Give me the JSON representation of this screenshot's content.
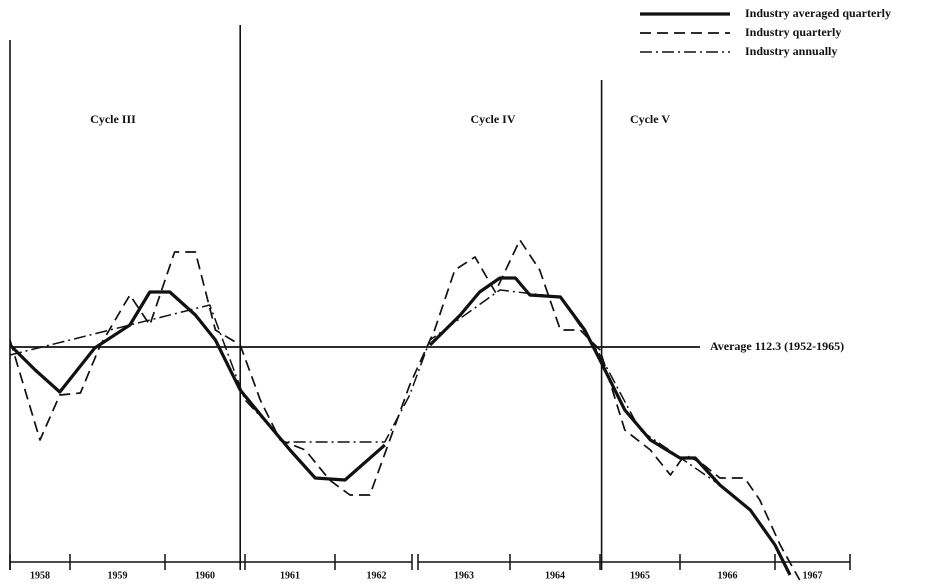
{
  "chart_data": {
    "type": "line",
    "xlim": [
      1958,
      1968
    ],
    "ylim": [
      89,
      145
    ],
    "xticks": [
      1958,
      1959,
      1960,
      1961,
      1962,
      1963,
      1964,
      1965,
      1966,
      1967,
      1968
    ],
    "x_labels": [
      1958,
      1959,
      1960,
      1961,
      1962,
      1963,
      1964,
      1965,
      1966,
      1967
    ],
    "average": 112.3,
    "average_label": "Average 112.3 (1952-1965)",
    "dividers": [
      1958,
      1960.94,
      1965.02
    ],
    "cycles": [
      "Cycle III",
      "Cycle IV",
      "Cycle V"
    ],
    "legend": "top-right",
    "series": [
      {
        "name": "Industry averaged quarterly",
        "color": "#111111",
        "style": "solid",
        "x": [
          1958,
          1958.42,
          1958.83,
          1959.26,
          1959.63,
          1959.84,
          1960.06,
          1960.38,
          1960.63,
          1960.94,
          1961.22,
          1961.5,
          1961.78,
          1962.12,
          1962.6,
          1962.9,
          1963.13,
          1963.46,
          1963.67,
          1963.89,
          1964.06,
          1964.22,
          1964.56,
          1964.83,
          1965.0,
          1965.31,
          1965.63,
          1966.0,
          1966.16,
          1966.42,
          1966.74,
          1967.0,
          1967.2
        ],
        "values": [
          112.5,
          110,
          107.8,
          112.2,
          114.5,
          117.8,
          117.8,
          115.5,
          113,
          108,
          105,
          102,
          99.2,
          99,
          102.5,
          null,
          112.5,
          115.5,
          117.8,
          119.2,
          119.2,
          117.5,
          117.3,
          114,
          111,
          106,
          103,
          101.2,
          101.2,
          98.5,
          96,
          92.5,
          89.5
        ]
      },
      {
        "name": "Industry quarterly",
        "color": "#111111",
        "style": "dashed",
        "x": [
          1958,
          1958.5,
          1958.83,
          1959.11,
          1959.32,
          1959.63,
          1959.84,
          1960.12,
          1960.38,
          1960.63,
          1960.94,
          1961.17,
          1961.39,
          1961.67,
          1961.94,
          1962.18,
          1962.42,
          1962.9,
          1963.18,
          1963.4,
          1963.62,
          1963.84,
          1964.11,
          1964.33,
          1964.56,
          1964.78,
          1965,
          1965.31,
          1965.63,
          1965.88,
          1966.05,
          1966.21,
          1966.42,
          1966.68,
          1966.84,
          1967.07,
          1967.33
        ],
        "values": [
          113,
          103,
          107.5,
          107.7,
          112.5,
          117.5,
          114.5,
          121.8,
          121.8,
          114,
          112.5,
          107,
          103,
          102,
          99,
          97.5,
          97.5,
          108.5,
          114,
          120,
          121.3,
          117.8,
          123,
          120,
          114,
          114,
          112,
          104,
          102,
          99.5,
          101.5,
          100.8,
          99.2,
          99.2,
          97,
          92.5,
          89
        ]
      },
      {
        "name": "Industry annually",
        "color": "#111111",
        "style": "dashdot",
        "x": [
          1958,
          1960.56,
          1961,
          1961.44,
          1962.6,
          1962.9,
          1963.13,
          1963.89,
          1964.56,
          1965,
          1965.5,
          1966.42
        ],
        "values": [
          111.5,
          116.5,
          107,
          102.8,
          102.8,
          107.5,
          113,
          118,
          117.3,
          111.5,
          104,
          98.5
        ]
      }
    ]
  }
}
